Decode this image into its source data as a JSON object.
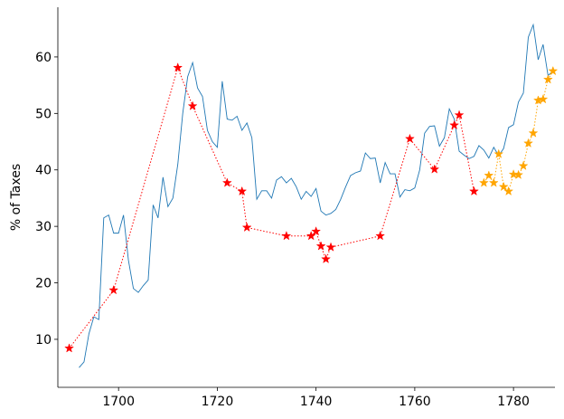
{
  "chart_data": {
    "type": "line",
    "ylabel": "% of Taxes",
    "xlim": [
      1687.7,
      1788.4
    ],
    "ylim": [
      1.5,
      68.8
    ],
    "xticks": [
      1700,
      1720,
      1740,
      1760,
      1780
    ],
    "yticks": [
      10,
      20,
      30,
      40,
      50,
      60
    ],
    "series": [
      {
        "color": "#1f77b4",
        "linestyle": "solid",
        "marker": "none",
        "x": [
          1692,
          1693,
          1694,
          1695,
          1696,
          1697,
          1698,
          1699,
          1700,
          1701,
          1702,
          1703,
          1704,
          1705,
          1706,
          1707,
          1708,
          1709,
          1710,
          1711,
          1712,
          1713,
          1714,
          1715,
          1716,
          1717,
          1718,
          1719,
          1720,
          1721,
          1722,
          1723,
          1724,
          1725,
          1726,
          1727,
          1728,
          1729,
          1730,
          1731,
          1732,
          1733,
          1734,
          1735,
          1736,
          1737,
          1738,
          1739,
          1740,
          1741,
          1742,
          1743,
          1744,
          1745,
          1746,
          1747,
          1748,
          1749,
          1750,
          1751,
          1752,
          1753,
          1754,
          1755,
          1756,
          1757,
          1758,
          1759,
          1760,
          1761,
          1762,
          1763,
          1764,
          1765,
          1766,
          1767,
          1768,
          1769,
          1770,
          1771,
          1772,
          1773,
          1774,
          1775,
          1776,
          1777,
          1778,
          1779,
          1780,
          1781,
          1782,
          1783,
          1784,
          1785,
          1786,
          1787,
          1788
        ],
        "values": [
          5,
          6,
          11,
          14,
          13.5,
          31.5,
          32,
          28.8,
          28.8,
          32,
          24,
          19,
          18.3,
          19.5,
          20.5,
          33.8,
          31.5,
          38.7,
          33.5,
          35,
          41,
          50,
          56.5,
          59,
          54.5,
          53,
          47,
          45,
          44,
          55.7,
          49,
          48.8,
          49.5,
          47,
          48.3,
          45.7,
          34.8,
          36.3,
          36.3,
          35,
          38.2,
          38.8,
          37.7,
          38.5,
          37,
          34.8,
          36.2,
          35.3,
          36.7,
          32.7,
          32,
          32.3,
          33,
          34.8,
          37,
          39,
          39.5,
          39.8,
          43,
          42,
          42.1,
          37.7,
          41.3,
          39.3,
          39.3,
          35.2,
          36.5,
          36.3,
          36.8,
          40,
          46.5,
          47.7,
          47.8,
          44.2,
          45.7,
          50.8,
          49,
          43.3,
          42.6,
          42,
          42.4,
          44.3,
          43.5,
          42.1,
          44,
          42.5,
          43.8,
          47.5,
          48,
          52,
          53.6,
          63.5,
          65.7,
          59.5,
          62.2,
          56.7,
          57.5
        ]
      },
      {
        "color": "red",
        "linestyle": "dotted",
        "marker": "star",
        "x": [
          1690,
          1699,
          1712,
          1715,
          1722,
          1725,
          1726,
          1734,
          1739,
          1740,
          1741,
          1742,
          1743,
          1753,
          1759,
          1764,
          1768,
          1769,
          1772
        ],
        "values": [
          8.4,
          18.7,
          58.1,
          51.3,
          37.7,
          36.2,
          29.8,
          28.3,
          28.3,
          29.1,
          26.5,
          24.2,
          26.3,
          28.3,
          45.5,
          40.1,
          47.9,
          49.7,
          36.2
        ]
      },
      {
        "color": "orange",
        "linestyle": "dotted",
        "marker": "star",
        "x": [
          1774,
          1775,
          1776,
          1777,
          1778,
          1779,
          1780,
          1781,
          1782,
          1783,
          1784,
          1785,
          1786,
          1787,
          1788
        ],
        "values": [
          37.7,
          39,
          37.7,
          42.8,
          37,
          36.2,
          39.2,
          39.1,
          40.7,
          44.7,
          46.5,
          52.3,
          52.5,
          56,
          57.5
        ]
      }
    ]
  }
}
